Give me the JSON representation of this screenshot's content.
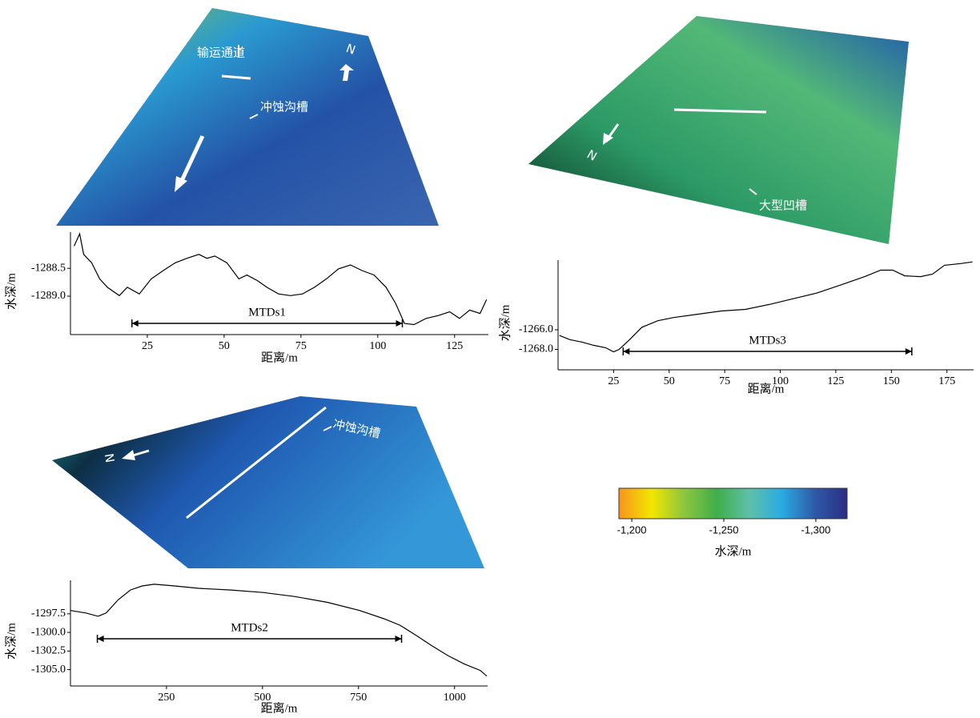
{
  "maps": [
    {
      "annotations": [
        "输运通道",
        "冲蚀沟槽"
      ],
      "north": "N"
    },
    {
      "annotations": [
        "大型凹槽"
      ],
      "north": "N"
    },
    {
      "annotations": [
        "冲蚀沟槽"
      ],
      "north": "N"
    }
  ],
  "chart_data": [
    {
      "type": "line",
      "color": "#000000",
      "xlabel": "距离/m",
      "ylabel": "水深/m",
      "x": [
        1.2,
        3.0,
        4.3,
        6.9,
        9.5,
        12.0,
        15.9,
        18.5,
        22.4,
        26.3,
        30.2,
        34.1,
        37.9,
        41.8,
        44.4,
        47.0,
        50.9,
        54.8,
        57.4,
        60.8,
        63.9,
        67.7,
        71.6,
        75.5,
        79.4,
        83.3,
        87.2,
        91.1,
        94.9,
        98.8,
        102.7,
        105.8,
        108.7,
        111.8,
        115.7,
        119.6,
        123.4,
        126.6,
        129.9,
        133.3,
        135.4
      ],
      "values": [
        -1288.1,
        -1287.88,
        -1288.25,
        -1288.4,
        -1288.69,
        -1288.84,
        -1288.99,
        -1288.84,
        -1288.96,
        -1288.69,
        -1288.54,
        -1288.4,
        -1288.32,
        -1288.25,
        -1288.32,
        -1288.28,
        -1288.4,
        -1288.69,
        -1288.62,
        -1288.72,
        -1288.84,
        -1288.96,
        -1288.99,
        -1288.96,
        -1288.84,
        -1288.69,
        -1288.51,
        -1288.44,
        -1288.54,
        -1288.62,
        -1288.84,
        -1289.13,
        -1289.49,
        -1289.51,
        -1289.4,
        -1289.35,
        -1289.28,
        -1289.4,
        -1289.25,
        -1289.31,
        -1289.06
      ],
      "xlim": [
        0,
        136
      ],
      "xticks": [
        25,
        50,
        75,
        100,
        125
      ],
      "ylim": [
        -1289.69,
        -1287.85
      ],
      "yticks": [
        {
          "value": -1289,
          "label": "-1289.0"
        },
        -1288.5
      ],
      "span": {
        "start": 20,
        "end": 108,
        "label": "MTDs1"
      }
    },
    {
      "type": "line",
      "color": "#000000",
      "xlabel": "距离/m",
      "ylabel": "水深/m",
      "x": [
        0.6,
        5.3,
        10.7,
        16.0,
        21.4,
        25.0,
        27.5,
        32.2,
        37.7,
        44.9,
        52.0,
        62.7,
        73.5,
        84.3,
        95.0,
        105.8,
        116.5,
        127.3,
        138.0,
        145.2,
        150.6,
        156.0,
        163.1,
        168.5,
        173.9,
        181.1,
        186.5
      ],
      "values": [
        -1266.58,
        -1267.0,
        -1267.25,
        -1267.58,
        -1267.83,
        -1268.25,
        -1268.0,
        -1267.0,
        -1265.75,
        -1265.08,
        -1264.75,
        -1264.42,
        -1264.08,
        -1263.92,
        -1263.42,
        -1262.83,
        -1262.25,
        -1261.42,
        -1260.58,
        -1259.92,
        -1259.92,
        -1260.5,
        -1260.58,
        -1260.33,
        -1259.42,
        -1259.25,
        -1259.08
      ],
      "xlim": [
        0,
        187
      ],
      "xticks": [
        25,
        50,
        75,
        100,
        125,
        150,
        175
      ],
      "ylim": [
        -1270.08,
        -1258.9
      ],
      "yticks": [
        {
          "value": -1268,
          "label": "-1268.0"
        },
        {
          "value": -1266,
          "label": "-1266.0"
        }
      ],
      "span": {
        "start": 29.3,
        "end": 159.2,
        "label": "MTDs3"
      }
    },
    {
      "type": "line",
      "color": "#000000",
      "xlabel": "距离/m",
      "ylabel": "水深/m",
      "x": [
        0,
        40,
        72,
        93,
        124,
        156,
        187,
        218,
        271,
        334,
        418,
        501,
        585,
        669,
        753,
        816,
        858,
        899,
        941,
        983,
        1025,
        1067,
        1084
      ],
      "values": [
        -1297.06,
        -1297.39,
        -1297.83,
        -1297.39,
        -1295.63,
        -1294.3,
        -1293.75,
        -1293.53,
        -1293.75,
        -1294.08,
        -1294.3,
        -1294.63,
        -1295.18,
        -1295.96,
        -1297.06,
        -1298.16,
        -1299.04,
        -1300.37,
        -1301.8,
        -1303.12,
        -1304.23,
        -1305.11,
        -1305.88
      ],
      "xlim": [
        0,
        1086
      ],
      "xticks": [
        250,
        500,
        750,
        1000
      ],
      "ylim": [
        -1307.2,
        -1293.0
      ],
      "yticks": [
        {
          "value": -1305,
          "label": "-1305.0"
        },
        -1302.5,
        {
          "value": -1300,
          "label": "-1300.0"
        },
        -1297.5
      ],
      "span": {
        "start": 70,
        "end": 862,
        "label": "MTDs2"
      }
    },
    {
      "type": "colorbar",
      "xlabel": "水深/m",
      "colors": [
        "#f7941d",
        "#f2e600",
        "#8cc63f",
        "#3fae49",
        "#5fc0a8",
        "#29abe2",
        "#2e5aa8",
        "#2b2e83"
      ],
      "xlim": [
        -1193,
        -1317
      ],
      "xticks": [
        {
          "value": -1200,
          "label": "-1,200"
        },
        {
          "value": -1250,
          "label": "-1,250"
        },
        {
          "value": -1300,
          "label": "-1,300"
        }
      ]
    }
  ]
}
